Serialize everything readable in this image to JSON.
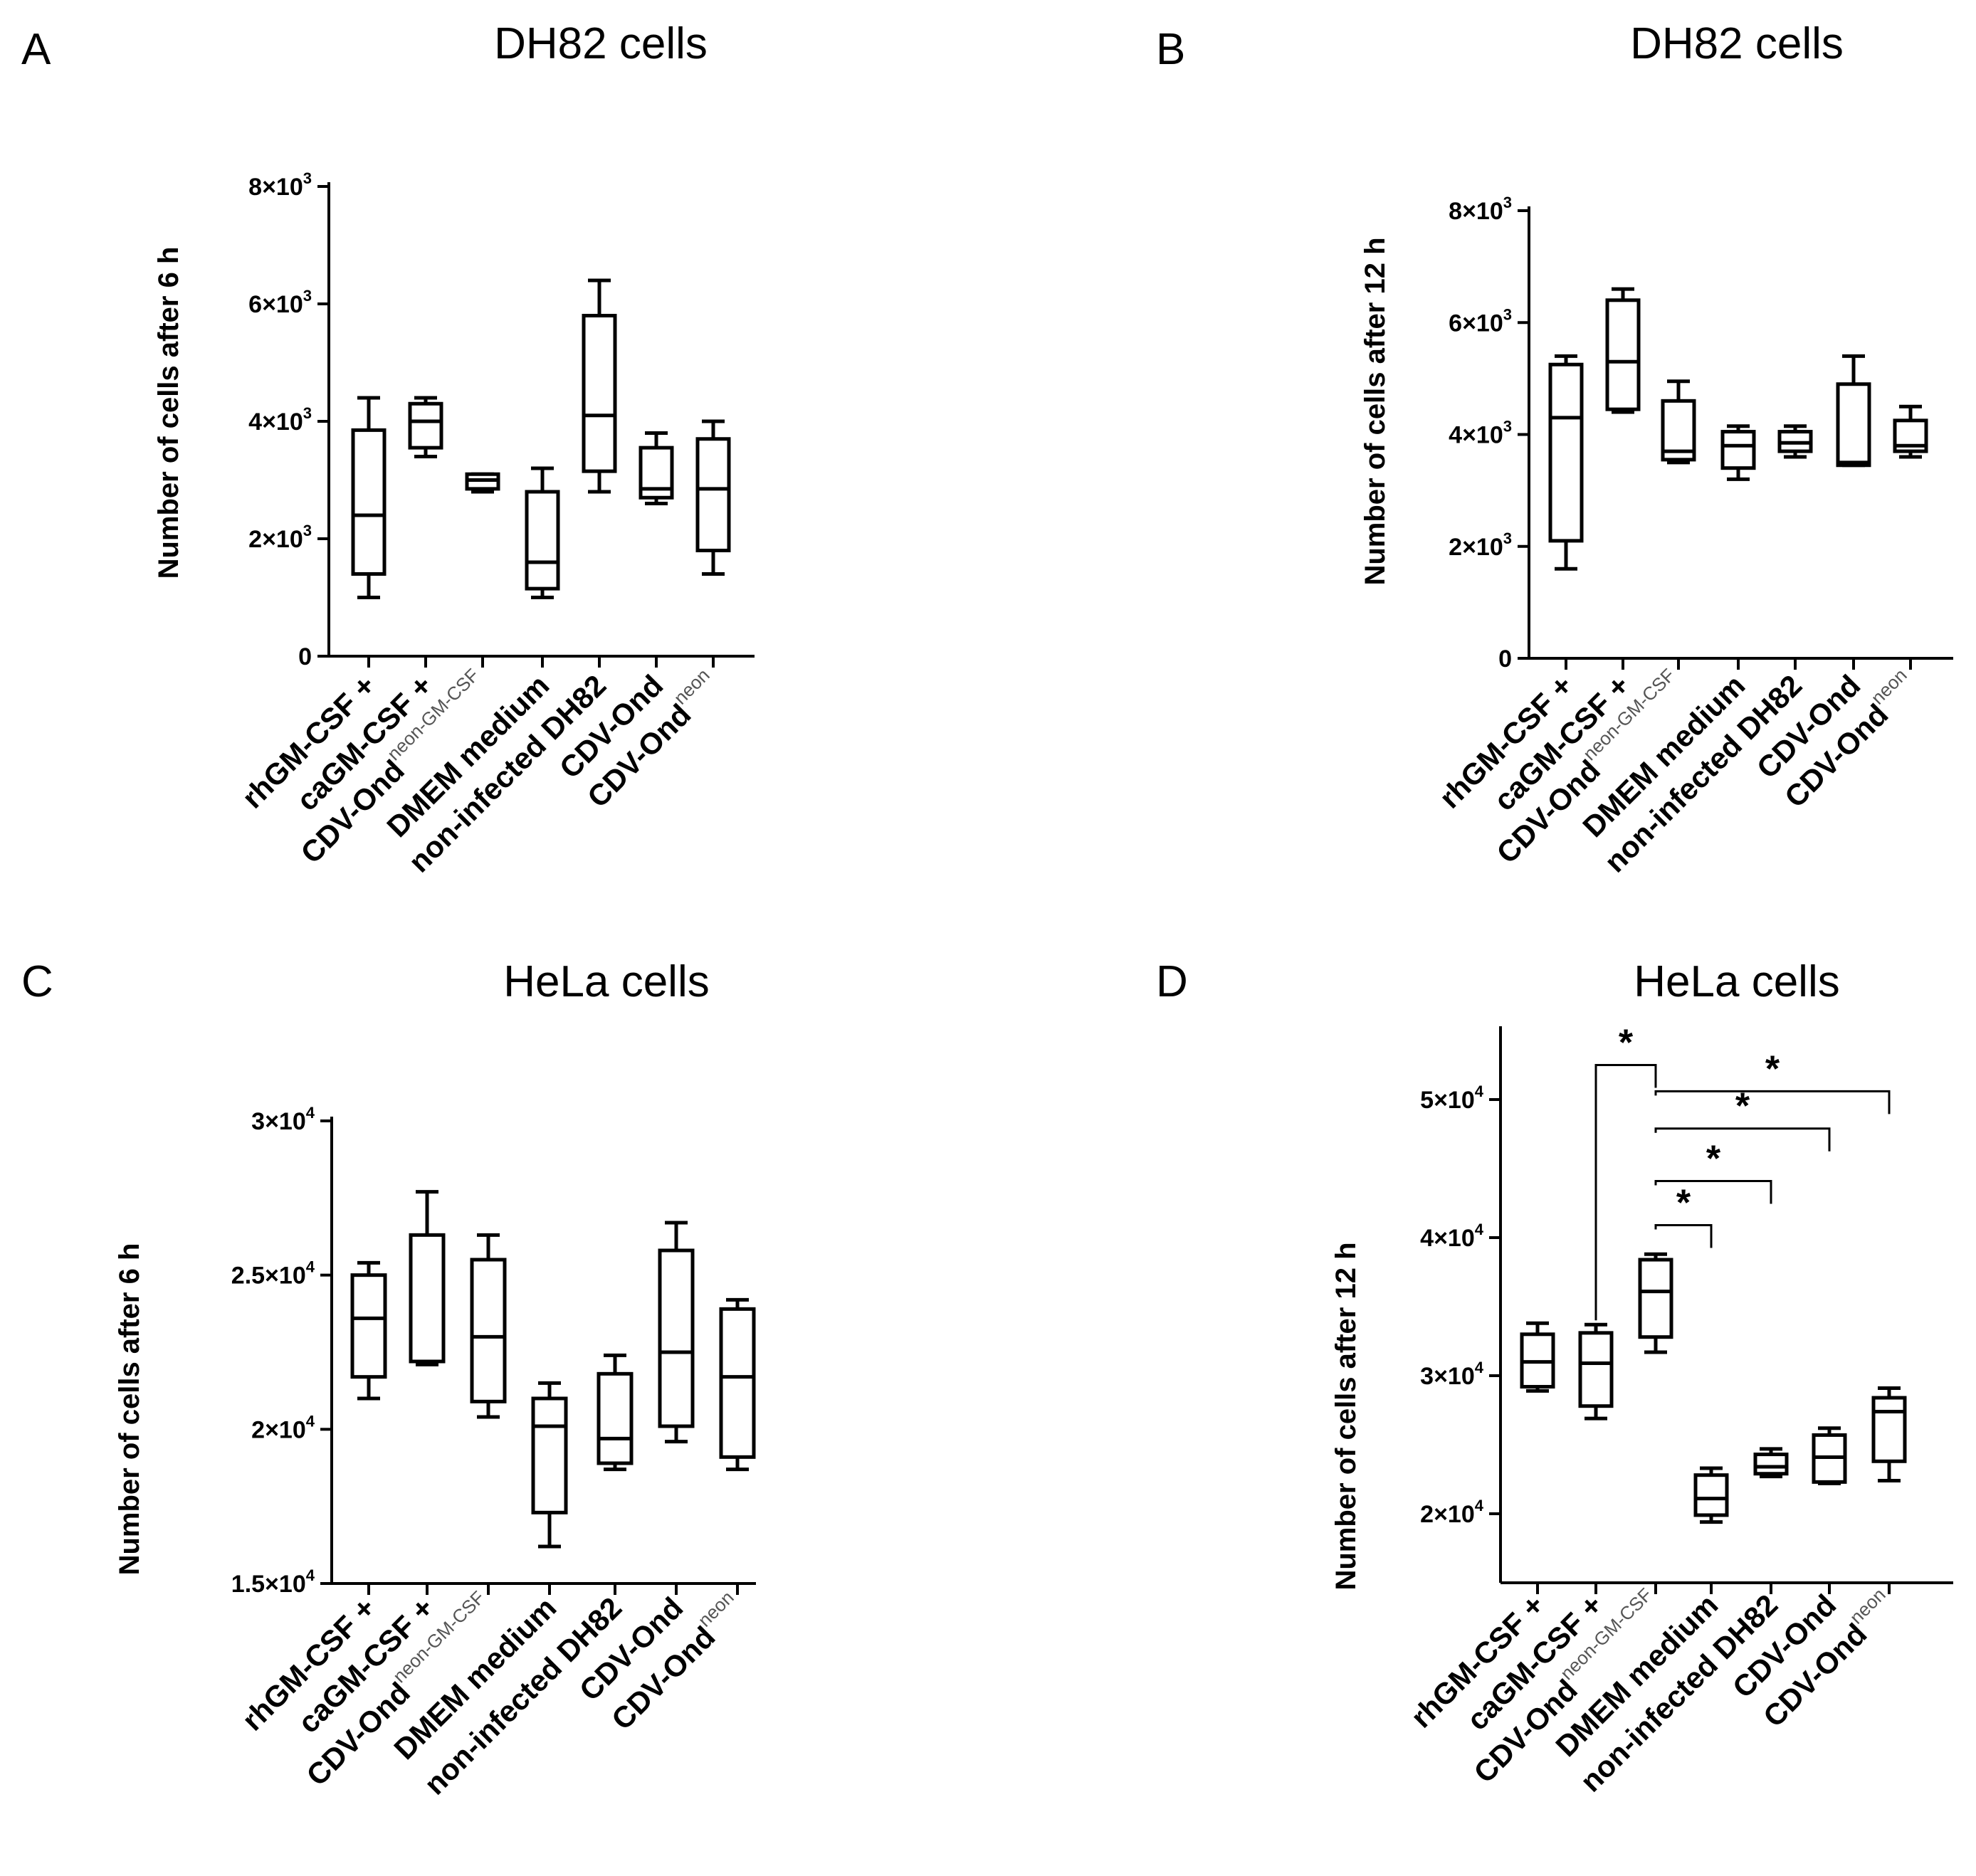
{
  "chart_data": [
    {
      "type": "box",
      "panel": "A",
      "title": "DH82 cells",
      "ylabel": "Number of cells after 6 h",
      "ylim": [
        0,
        8000
      ],
      "yticks": [
        {
          "value": 0,
          "label": "0"
        },
        {
          "value": 2000,
          "label": "2×10",
          "exp": "3"
        },
        {
          "value": 4000,
          "label": "4×10",
          "exp": "3"
        },
        {
          "value": 6000,
          "label": "6×10",
          "exp": "3"
        },
        {
          "value": 8000,
          "label": "8×10",
          "exp": "3"
        }
      ],
      "categories": [
        {
          "label": "rhGM-CSF +"
        },
        {
          "label": "caGM-CSF +"
        },
        {
          "label": "CDV-Ond",
          "sup": "neon-GM-CSF"
        },
        {
          "label": "DMEM medium"
        },
        {
          "label": "non-infected DH82"
        },
        {
          "label": "CDV-Ond"
        },
        {
          "label": "CDV-Ond",
          "sup": "neon"
        }
      ],
      "boxes": [
        {
          "min": 1000,
          "q1": 1400,
          "median": 2400,
          "q3": 3850,
          "max": 4400
        },
        {
          "min": 3400,
          "q1": 3550,
          "median": 4000,
          "q3": 4300,
          "max": 4400
        },
        {
          "min": 2800,
          "q1": 2850,
          "median": 3000,
          "q3": 3100,
          "max": 3100
        },
        {
          "min": 1000,
          "q1": 1150,
          "median": 1600,
          "q3": 2800,
          "max": 3200
        },
        {
          "min": 2800,
          "q1": 3150,
          "median": 4100,
          "q3": 5800,
          "max": 6400
        },
        {
          "min": 2600,
          "q1": 2700,
          "median": 2850,
          "q3": 3550,
          "max": 3800
        },
        {
          "min": 1400,
          "q1": 1800,
          "median": 2850,
          "q3": 3700,
          "max": 4000
        }
      ],
      "significance": []
    },
    {
      "type": "box",
      "panel": "B",
      "title": "DH82 cells",
      "ylabel": "Number of cells after 12 h",
      "ylim": [
        0,
        8000
      ],
      "yticks": [
        {
          "value": 0,
          "label": "0"
        },
        {
          "value": 2000,
          "label": "2×10",
          "exp": "3"
        },
        {
          "value": 4000,
          "label": "4×10",
          "exp": "3"
        },
        {
          "value": 6000,
          "label": "6×10",
          "exp": "3"
        },
        {
          "value": 8000,
          "label": "8×10",
          "exp": "3"
        }
      ],
      "categories": [
        {
          "label": "rhGM-CSF +"
        },
        {
          "label": "caGM-CSF +"
        },
        {
          "label": "CDV-Ond",
          "sup": "neon-GM-CSF"
        },
        {
          "label": "DMEM medium"
        },
        {
          "label": "non-infected DH82"
        },
        {
          "label": "CDV-Ond"
        },
        {
          "label": "CDV-Ond",
          "sup": "neon"
        }
      ],
      "boxes": [
        {
          "min": 1600,
          "q1": 2100,
          "median": 4300,
          "q3": 5250,
          "max": 5400
        },
        {
          "min": 4400,
          "q1": 4450,
          "median": 5300,
          "q3": 6400,
          "max": 6600
        },
        {
          "min": 3500,
          "q1": 3550,
          "median": 3700,
          "q3": 4600,
          "max": 4950
        },
        {
          "min": 3200,
          "q1": 3400,
          "median": 3800,
          "q3": 4050,
          "max": 4150
        },
        {
          "min": 3600,
          "q1": 3700,
          "median": 3850,
          "q3": 4050,
          "max": 4150
        },
        {
          "min": 3450,
          "q1": 3450,
          "median": 3500,
          "q3": 4900,
          "max": 5400
        },
        {
          "min": 3600,
          "q1": 3700,
          "median": 3800,
          "q3": 4250,
          "max": 4500
        }
      ],
      "significance": []
    },
    {
      "type": "box",
      "panel": "C",
      "title": "HeLa cells",
      "ylabel": "Number of cells after 6 h",
      "ylim": [
        15000,
        30000
      ],
      "yticks": [
        {
          "value": 15000,
          "label": "1.5×10",
          "exp": "4"
        },
        {
          "value": 20000,
          "label": "2×10",
          "exp": "4"
        },
        {
          "value": 25000,
          "label": "2.5×10",
          "exp": "4"
        },
        {
          "value": 30000,
          "label": "3×10",
          "exp": "4"
        }
      ],
      "categories": [
        {
          "label": "rhGM-CSF +"
        },
        {
          "label": "caGM-CSF +"
        },
        {
          "label": "CDV-Ond",
          "sup": "neon-GM-CSF"
        },
        {
          "label": "DMEM medium"
        },
        {
          "label": "non-infected DH82"
        },
        {
          "label": "CDV-Ond"
        },
        {
          "label": "CDV-Ond",
          "sup": "neon"
        }
      ],
      "boxes": [
        {
          "min": 21000,
          "q1": 21700,
          "median": 23600,
          "q3": 25000,
          "max": 25400
        },
        {
          "min": 22100,
          "q1": 22200,
          "median": 22200,
          "q3": 26300,
          "max": 27700
        },
        {
          "min": 20400,
          "q1": 20900,
          "median": 23000,
          "q3": 25500,
          "max": 26300
        },
        {
          "min": 16200,
          "q1": 17300,
          "median": 20100,
          "q3": 21000,
          "max": 21500
        },
        {
          "min": 18700,
          "q1": 18900,
          "median": 19700,
          "q3": 21800,
          "max": 22400
        },
        {
          "min": 19600,
          "q1": 20100,
          "median": 22500,
          "q3": 25800,
          "max": 26700
        },
        {
          "min": 18700,
          "q1": 19100,
          "median": 21700,
          "q3": 23900,
          "max": 24200
        }
      ],
      "significance": []
    },
    {
      "type": "box",
      "panel": "D",
      "title": "HeLa cells",
      "ylabel": "Number of cells after 12 h",
      "ylim": [
        15000,
        55000
      ],
      "yticks": [
        {
          "value": 20000,
          "label": "2×10",
          "exp": "4"
        },
        {
          "value": 30000,
          "label": "3×10",
          "exp": "4"
        },
        {
          "value": 40000,
          "label": "4×10",
          "exp": "4"
        },
        {
          "value": 50000,
          "label": "5×10",
          "exp": "4"
        }
      ],
      "categories": [
        {
          "label": "rhGM-CSF +"
        },
        {
          "label": "caGM-CSF +"
        },
        {
          "label": "CDV-Ond",
          "sup": "neon-GM-CSF"
        },
        {
          "label": "DMEM medium"
        },
        {
          "label": "non-infected DH82"
        },
        {
          "label": "CDV-Ond"
        },
        {
          "label": "CDV-Ond",
          "sup": "neon"
        }
      ],
      "boxes": [
        {
          "min": 28900,
          "q1": 29200,
          "median": 31000,
          "q3": 33000,
          "max": 33800
        },
        {
          "min": 26900,
          "q1": 27800,
          "median": 30900,
          "q3": 33100,
          "max": 33700
        },
        {
          "min": 31700,
          "q1": 32800,
          "median": 36100,
          "q3": 38400,
          "max": 38800
        },
        {
          "min": 19400,
          "q1": 19900,
          "median": 21100,
          "q3": 22800,
          "max": 23300
        },
        {
          "min": 22700,
          "q1": 22900,
          "median": 23400,
          "q3": 24300,
          "max": 24700
        },
        {
          "min": 22200,
          "q1": 22300,
          "median": 24100,
          "q3": 25700,
          "max": 26200
        },
        {
          "min": 22400,
          "q1": 23800,
          "median": 27400,
          "q3": 28400,
          "max": 29100
        }
      ],
      "significance": [
        {
          "from": 1,
          "to": 2,
          "label": "*",
          "level": 52500
        },
        {
          "from": 2,
          "to": 3,
          "label": "*",
          "level": 40900
        },
        {
          "from": 2,
          "to": 4,
          "label": "*",
          "level": 44100
        },
        {
          "from": 2,
          "to": 5,
          "label": "*",
          "level": 47900
        },
        {
          "from": 2,
          "to": 6,
          "label": "*",
          "level": 50600
        }
      ]
    }
  ]
}
